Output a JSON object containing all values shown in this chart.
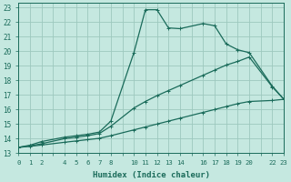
{
  "xlabel": "Humidex (Indice chaleur)",
  "bg_color": "#c5e8e0",
  "grid_color": "#9dc8be",
  "line_color": "#1a6b5a",
  "xlim": [
    0,
    23
  ],
  "ylim": [
    13,
    23.3
  ],
  "yticks": [
    13,
    14,
    15,
    16,
    17,
    18,
    19,
    20,
    21,
    22,
    23
  ],
  "xticks": [
    0,
    1,
    2,
    3,
    4,
    5,
    6,
    7,
    8,
    9,
    10,
    11,
    12,
    13,
    14,
    15,
    16,
    17,
    18,
    19,
    20,
    21,
    22,
    23
  ],
  "xtick_labels": [
    "0",
    "1",
    "2",
    "",
    "4",
    "5",
    "6",
    "7",
    "8",
    "",
    "10",
    "11",
    "12",
    "13",
    "14",
    "",
    "16",
    "17",
    "18",
    "19",
    "20",
    "",
    "22",
    "23"
  ],
  "line1_x": [
    0,
    1,
    2,
    4,
    5,
    6,
    7,
    8,
    10,
    11,
    12,
    13,
    14,
    16,
    17,
    18,
    19,
    20,
    22,
    23
  ],
  "line1_y": [
    13.4,
    13.55,
    13.8,
    14.1,
    14.2,
    14.3,
    14.45,
    15.2,
    19.9,
    22.85,
    22.85,
    21.6,
    21.55,
    21.9,
    21.75,
    20.5,
    20.1,
    19.9,
    17.6,
    16.7
  ],
  "line2_x": [
    0,
    1,
    2,
    4,
    5,
    6,
    7,
    8,
    10,
    11,
    12,
    13,
    14,
    16,
    17,
    18,
    19,
    20,
    22,
    23
  ],
  "line2_y": [
    13.4,
    13.5,
    13.65,
    14.0,
    14.1,
    14.2,
    14.35,
    14.85,
    16.1,
    16.55,
    16.95,
    17.3,
    17.65,
    18.35,
    18.7,
    19.05,
    19.3,
    19.6,
    17.55,
    16.7
  ],
  "line3_x": [
    0,
    1,
    2,
    4,
    5,
    6,
    7,
    8,
    10,
    11,
    12,
    13,
    14,
    16,
    17,
    18,
    19,
    20,
    22,
    23
  ],
  "line3_y": [
    13.4,
    13.47,
    13.56,
    13.75,
    13.84,
    13.93,
    14.02,
    14.2,
    14.6,
    14.8,
    15.0,
    15.2,
    15.4,
    15.8,
    16.0,
    16.2,
    16.4,
    16.55,
    16.62,
    16.7
  ]
}
